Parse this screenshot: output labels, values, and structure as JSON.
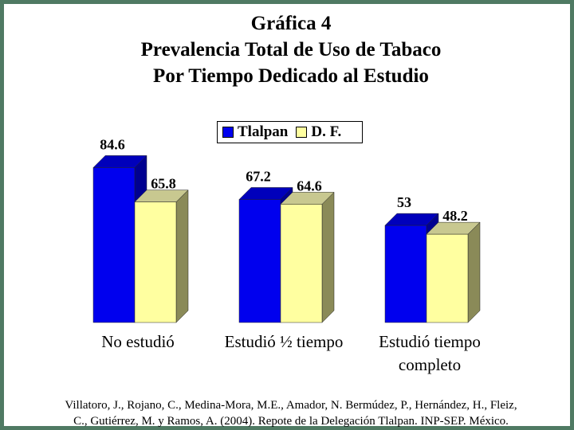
{
  "title": {
    "line1": "Gráfica 4",
    "line2": "Prevalencia Total de Uso de Tabaco",
    "line3": "Por Tiempo Dedicado al Estudio"
  },
  "chart_data": {
    "type": "bar",
    "title": "Gráfica 4 Prevalencia Total de Uso de Tabaco Por Tiempo Dedicado al Estudio",
    "categories": [
      "No estudió",
      "Estudió ½ tiempo",
      "Estudió tiempo completo"
    ],
    "category_lines": [
      [
        "No estudió"
      ],
      [
        "Estudió ½ tiempo"
      ],
      [
        "Estudió tiempo",
        "completo"
      ]
    ],
    "series": [
      {
        "name": "Tlalpan",
        "values": [
          84.6,
          67.2,
          53
        ],
        "labels": [
          "84.6",
          "67.2",
          "53"
        ],
        "color": "#0000ee",
        "side_color": "#000090",
        "top_color": "#0000bb"
      },
      {
        "name": "D. F.",
        "values": [
          65.8,
          64.6,
          48.2
        ],
        "labels": [
          "65.8",
          "64.6",
          "48.2"
        ],
        "color": "#ffffa0",
        "side_color": "#8a8a58",
        "top_color": "#c8c890"
      }
    ],
    "ylim": [
      0,
      100
    ],
    "legend_position": "top-center",
    "grid": false,
    "style": "3d-bar"
  },
  "colors": {
    "frame": "#4f7a63",
    "tlalpan": "#0000ee",
    "df": "#ffffa0"
  },
  "source": {
    "line1": "Villatoro, J., Rojano, C., Medina-Mora, M.E., Amador, N. Bermúdez, P., Hernández, H., Fleiz,",
    "line2": "C., Gutiérrez, M. y Ramos, A. (2004). Repote de la Delegación Tlalpan. INP-SEP. México."
  }
}
